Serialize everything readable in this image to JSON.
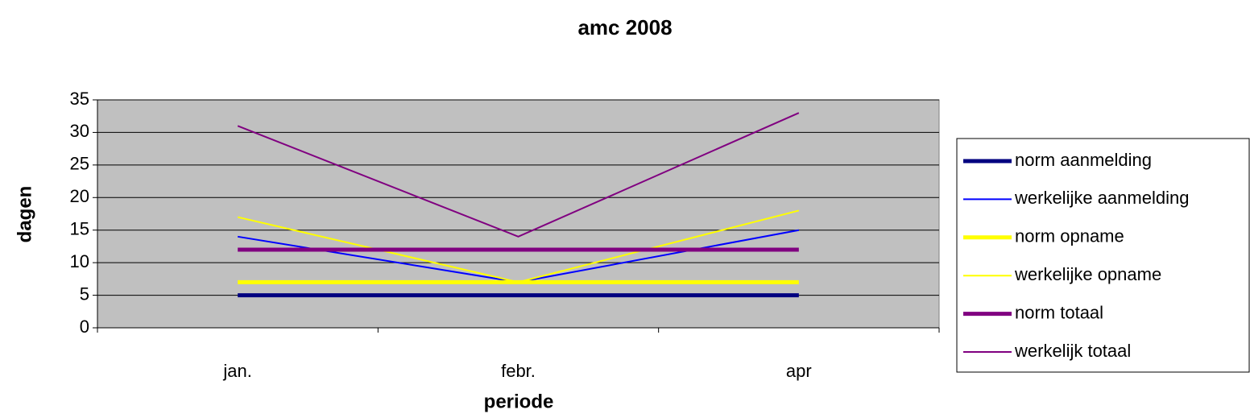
{
  "chart_data": {
    "type": "line",
    "title": "amc 2008",
    "x_label": "periode",
    "y_label": "dagen",
    "categories": [
      "jan.",
      "febr.",
      "apr"
    ],
    "series": [
      {
        "name": "norm aanmelding",
        "color": "#000080",
        "values": [
          5,
          5,
          5
        ]
      },
      {
        "name": "werkelijke aanmelding",
        "color": "#0000ff",
        "values": [
          14,
          7,
          15
        ]
      },
      {
        "name": "norm opname",
        "color": "#ffff00",
        "values": [
          7,
          7,
          7
        ]
      },
      {
        "name": "werkelijke opname",
        "color": "#ffff00",
        "values": [
          17,
          7,
          18
        ]
      },
      {
        "name": "norm totaal",
        "color": "#800080",
        "values": [
          12,
          12,
          12
        ]
      },
      {
        "name": "werkelijk totaal",
        "color": "#800080",
        "values": [
          31,
          14,
          33
        ]
      }
    ],
    "ylim": [
      0,
      35
    ],
    "yticks": [
      0,
      5,
      10,
      15,
      20,
      25,
      30,
      35
    ],
    "grid": true,
    "legend": "right"
  }
}
